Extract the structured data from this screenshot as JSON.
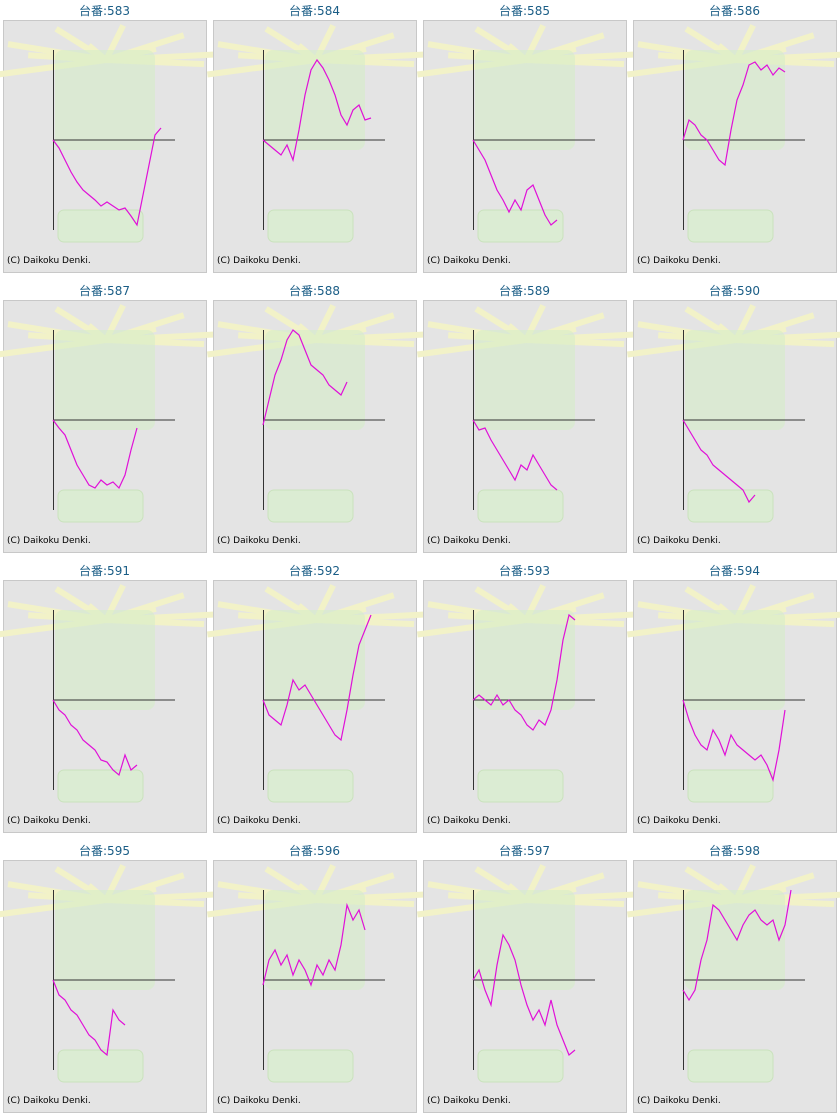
{
  "chart_data": [
    {
      "type": "line",
      "title": "台番:583",
      "credit": "(C) Daikoku Denki.",
      "color": "#e010d8",
      "ylim": [
        -90,
        90
      ],
      "values": [
        0,
        -8,
        -20,
        -32,
        -42,
        -50,
        -55,
        -60,
        -66,
        -62,
        -66,
        -70,
        -68,
        -76,
        -85,
        -55,
        -25,
        5,
        12
      ]
    },
    {
      "type": "line",
      "title": "台番:584",
      "credit": "(C) Daikoku Denki.",
      "color": "#e010d8",
      "ylim": [
        -90,
        90
      ],
      "values": [
        0,
        -5,
        -10,
        -15,
        -5,
        -20,
        10,
        45,
        70,
        80,
        72,
        60,
        45,
        25,
        15,
        30,
        35,
        20,
        22
      ]
    },
    {
      "type": "line",
      "title": "台番:585",
      "credit": "(C) Daikoku Denki.",
      "color": "#e010d8",
      "ylim": [
        -90,
        90
      ],
      "values": [
        0,
        -10,
        -20,
        -35,
        -50,
        -60,
        -72,
        -60,
        -70,
        -50,
        -45,
        -60,
        -75,
        -85,
        -80
      ]
    },
    {
      "type": "line",
      "title": "台番:586",
      "credit": "(C) Daikoku Denki.",
      "color": "#e010d8",
      "ylim": [
        -90,
        90
      ],
      "values": [
        0,
        20,
        15,
        5,
        0,
        -10,
        -20,
        -25,
        10,
        40,
        55,
        75,
        78,
        70,
        75,
        65,
        72,
        68
      ]
    },
    {
      "type": "line",
      "title": "台番:587",
      "credit": "(C) Daikoku Denki.",
      "color": "#e010d8",
      "ylim": [
        -90,
        90
      ],
      "values": [
        0,
        -8,
        -15,
        -30,
        -45,
        -55,
        -65,
        -68,
        -60,
        -65,
        -62,
        -68,
        -55,
        -30,
        -8
      ]
    },
    {
      "type": "line",
      "title": "台番:588",
      "credit": "(C) Daikoku Denki.",
      "color": "#e010d8",
      "ylim": [
        -90,
        90
      ],
      "values": [
        -5,
        20,
        45,
        60,
        80,
        90,
        85,
        70,
        55,
        50,
        45,
        35,
        30,
        25,
        38
      ]
    },
    {
      "type": "line",
      "title": "台番:589",
      "credit": "(C) Daikoku Denki.",
      "color": "#e010d8",
      "ylim": [
        -90,
        90
      ],
      "values": [
        0,
        -10,
        -8,
        -20,
        -30,
        -40,
        -50,
        -60,
        -45,
        -50,
        -35,
        -45,
        -55,
        -65,
        -70
      ]
    },
    {
      "type": "line",
      "title": "台番:590",
      "credit": "(C) Daikoku Denki.",
      "color": "#e010d8",
      "ylim": [
        -90,
        90
      ],
      "values": [
        0,
        -10,
        -20,
        -30,
        -35,
        -45,
        -50,
        -55,
        -60,
        -65,
        -70,
        -82,
        -75
      ]
    },
    {
      "type": "line",
      "title": "台番:591",
      "credit": "(C) Daikoku Denki.",
      "color": "#e010d8",
      "ylim": [
        -90,
        90
      ],
      "values": [
        0,
        -10,
        -15,
        -25,
        -30,
        -40,
        -45,
        -50,
        -60,
        -62,
        -70,
        -75,
        -55,
        -70,
        -65
      ]
    },
    {
      "type": "line",
      "title": "台番:592",
      "credit": "(C) Daikoku Denki.",
      "color": "#e010d8",
      "ylim": [
        -90,
        90
      ],
      "values": [
        0,
        -15,
        -20,
        -25,
        -5,
        20,
        10,
        15,
        5,
        -5,
        -15,
        -25,
        -35,
        -40,
        -10,
        25,
        55,
        70,
        85
      ]
    },
    {
      "type": "line",
      "title": "台番:593",
      "credit": "(C) Daikoku Denki.",
      "color": "#e010d8",
      "ylim": [
        -90,
        90
      ],
      "values": [
        0,
        5,
        0,
        -5,
        5,
        -5,
        0,
        -10,
        -15,
        -25,
        -30,
        -20,
        -25,
        -10,
        20,
        60,
        85,
        80
      ]
    },
    {
      "type": "line",
      "title": "台番:594",
      "credit": "(C) Daikoku Denki.",
      "color": "#e010d8",
      "ylim": [
        -90,
        90
      ],
      "values": [
        0,
        -20,
        -35,
        -45,
        -50,
        -30,
        -40,
        -55,
        -35,
        -45,
        -50,
        -55,
        -60,
        -55,
        -65,
        -80,
        -50,
        -10
      ]
    },
    {
      "type": "line",
      "title": "台番:595",
      "credit": "(C) Daikoku Denki.",
      "color": "#e010d8",
      "ylim": [
        -90,
        90
      ],
      "values": [
        0,
        -15,
        -20,
        -30,
        -35,
        -45,
        -55,
        -60,
        -70,
        -75,
        -30,
        -40,
        -45
      ]
    },
    {
      "type": "line",
      "title": "台番:596",
      "credit": "(C) Daikoku Denki.",
      "color": "#e010d8",
      "ylim": [
        -90,
        90
      ],
      "values": [
        -5,
        20,
        30,
        15,
        25,
        5,
        20,
        10,
        -5,
        15,
        5,
        20,
        10,
        35,
        75,
        60,
        70,
        50
      ]
    },
    {
      "type": "line",
      "title": "台番:597",
      "credit": "(C) Daikoku Denki.",
      "color": "#e010d8",
      "ylim": [
        -90,
        90
      ],
      "values": [
        0,
        10,
        -10,
        -25,
        15,
        45,
        35,
        20,
        -5,
        -25,
        -40,
        -30,
        -45,
        -20,
        -45,
        -60,
        -75,
        -70
      ]
    },
    {
      "type": "line",
      "title": "台番:598",
      "credit": "(C) Daikoku Denki.",
      "color": "#e010d8",
      "ylim": [
        -90,
        90
      ],
      "values": [
        -10,
        -20,
        -10,
        20,
        40,
        75,
        70,
        60,
        50,
        40,
        55,
        65,
        70,
        60,
        55,
        60,
        40,
        55,
        90
      ]
    }
  ]
}
